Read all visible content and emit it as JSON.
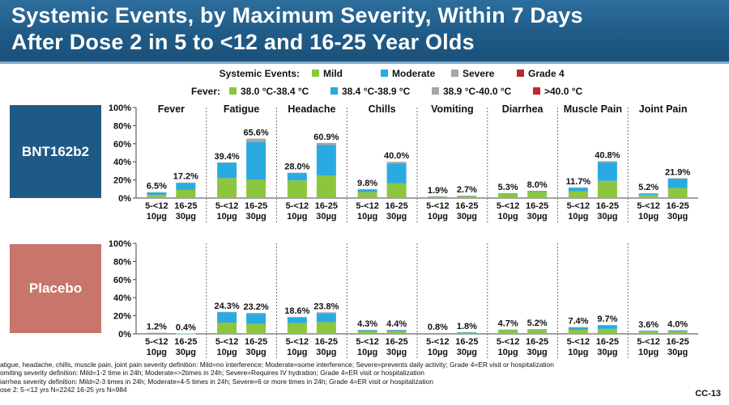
{
  "title": {
    "line1": "Systemic Events, by Maximum Severity, Within 7 Days",
    "line2": "After Dose 2 in 5 to <12 and 16-25 Year Olds"
  },
  "legend": {
    "systemic_label": "Systemic Events:",
    "systemic_items": [
      {
        "label": "Mild",
        "color": "#8cc63f"
      },
      {
        "label": "Moderate",
        "color": "#29abe2"
      },
      {
        "label": "Severe",
        "color": "#a6a6a6"
      },
      {
        "label": "Grade 4",
        "color": "#c1272d"
      }
    ],
    "fever_label": "Fever:",
    "fever_items": [
      {
        "label": "38.0 °C-38.4 °C",
        "color": "#8cc63f"
      },
      {
        "label": "38.4 °C-38.9 °C",
        "color": "#29abe2"
      },
      {
        "label": "38.9 °C-40.0 °C",
        "color": "#a6a6a6"
      },
      {
        "label": ">40.0 °C",
        "color": "#c1272d"
      }
    ]
  },
  "arms": {
    "bnt": "BNT162b2",
    "placebo": "Placebo"
  },
  "footnotes": [
    "atigue, headache, chills, muscle pain, joint pain severity definition: Mild=no interference; Moderate=some interference; Severe=prevents daily activity; Grade 4=ER visit or hospitalization",
    "omiting severity definition: Mild=1-2 time in 24h; Moderate=>2times in 24h; Severe=Requires IV hydration; Grade 4=ER visit or hospitalization",
    "iarrhea severity definition: Mild=2-3 times in 24h; Moderate=4-5 times in 24h; Severe=6 or more times in 24h; Grade 4=ER visit or hospitalization",
    "ose 2: 5-<12 yrs N=2242 16-25 yrs N=984"
  ],
  "slide_id": "CC-13",
  "colors": {
    "mild": "#8cc63f",
    "moderate": "#29abe2",
    "severe": "#a6a6a6",
    "grade4": "#c1272d"
  },
  "chart_data": {
    "type": "bar",
    "stacked": true,
    "categories": [
      "Fever",
      "Fatigue",
      "Headache",
      "Chills",
      "Vomiting",
      "Diarrhea",
      "Muscle Pain",
      "Joint Pain"
    ],
    "group_labels": [
      {
        "line1": "5-<12",
        "line2": "10µg"
      },
      {
        "line1": "16-25",
        "line2": "30µg"
      }
    ],
    "ylim": [
      0,
      100
    ],
    "yticks": [
      "0%",
      "20%",
      "40%",
      "60%",
      "80%",
      "100%"
    ],
    "series_names": [
      "Mild",
      "Moderate",
      "Severe",
      "Grade 4"
    ],
    "panels": [
      {
        "arm": "BNT162b2",
        "bars": [
          {
            "event": "Fever",
            "group": "5-<12 10µg",
            "total_label": "6.5%",
            "mild": 3.5,
            "moderate": 2.7,
            "severe": 0.3,
            "grade4": 0
          },
          {
            "event": "Fever",
            "group": "16-25 30µg",
            "total_label": "17.2%",
            "mild": 9.0,
            "moderate": 7.7,
            "severe": 0.5,
            "grade4": 0
          },
          {
            "event": "Fatigue",
            "group": "5-<12 10µg",
            "total_label": "39.4%",
            "mild": 22.0,
            "moderate": 17.0,
            "severe": 0.4,
            "grade4": 0
          },
          {
            "event": "Fatigue",
            "group": "16-25 30µg",
            "total_label": "65.6%",
            "mild": 20.5,
            "moderate": 41.5,
            "severe": 3.6,
            "grade4": 0
          },
          {
            "event": "Headache",
            "group": "5-<12 10µg",
            "total_label": "28.0%",
            "mild": 19.5,
            "moderate": 8.2,
            "severe": 0.3,
            "grade4": 0
          },
          {
            "event": "Headache",
            "group": "16-25 30µg",
            "total_label": "60.9%",
            "mild": 25.0,
            "moderate": 33.5,
            "severe": 2.4,
            "grade4": 0
          },
          {
            "event": "Chills",
            "group": "5-<12 10µg",
            "total_label": "9.8%",
            "mild": 6.5,
            "moderate": 3.1,
            "severe": 0.2,
            "grade4": 0
          },
          {
            "event": "Chills",
            "group": "16-25 30µg",
            "total_label": "40.0%",
            "mild": 16.5,
            "moderate": 21.5,
            "severe": 2.0,
            "grade4": 0
          },
          {
            "event": "Vomiting",
            "group": "5-<12 10µg",
            "total_label": "1.9%",
            "mild": 1.3,
            "moderate": 0.5,
            "severe": 0.1,
            "grade4": 0
          },
          {
            "event": "Vomiting",
            "group": "16-25 30µg",
            "total_label": "2.7%",
            "mild": 2.0,
            "moderate": 0.6,
            "severe": 0.1,
            "grade4": 0
          },
          {
            "event": "Diarrhea",
            "group": "5-<12 10µg",
            "total_label": "5.3%",
            "mild": 4.5,
            "moderate": 0.7,
            "severe": 0.1,
            "grade4": 0
          },
          {
            "event": "Diarrhea",
            "group": "16-25 30µg",
            "total_label": "8.0%",
            "mild": 6.8,
            "moderate": 1.1,
            "severe": 0.1,
            "grade4": 0
          },
          {
            "event": "Muscle Pain",
            "group": "5-<12 10µg",
            "total_label": "11.7%",
            "mild": 7.5,
            "moderate": 4.0,
            "severe": 0.2,
            "grade4": 0
          },
          {
            "event": "Muscle Pain",
            "group": "16-25 30µg",
            "total_label": "40.8%",
            "mild": 19.0,
            "moderate": 20.5,
            "severe": 1.3,
            "grade4": 0
          },
          {
            "event": "Joint Pain",
            "group": "5-<12 10µg",
            "total_label": "5.2%",
            "mild": 3.5,
            "moderate": 1.6,
            "severe": 0.1,
            "grade4": 0
          },
          {
            "event": "Joint Pain",
            "group": "16-25 30µg",
            "total_label": "21.9%",
            "mild": 11.0,
            "moderate": 10.4,
            "severe": 0.5,
            "grade4": 0
          }
        ]
      },
      {
        "arm": "Placebo",
        "bars": [
          {
            "event": "Fever",
            "group": "5-<12 10µg",
            "total_label": "1.2%",
            "mild": 0.7,
            "moderate": 0.4,
            "severe": 0.1,
            "grade4": 0
          },
          {
            "event": "Fever",
            "group": "16-25 30µg",
            "total_label": "0.4%",
            "mild": 0.2,
            "moderate": 0.1,
            "severe": 0.1,
            "grade4": 0
          },
          {
            "event": "Fatigue",
            "group": "5-<12 10µg",
            "total_label": "24.3%",
            "mild": 12.5,
            "moderate": 11.5,
            "severe": 0.3,
            "grade4": 0
          },
          {
            "event": "Fatigue",
            "group": "16-25 30µg",
            "total_label": "23.2%",
            "mild": 11.0,
            "moderate": 11.2,
            "severe": 1.0,
            "grade4": 0
          },
          {
            "event": "Headache",
            "group": "5-<12 10µg",
            "total_label": "18.6%",
            "mild": 12.0,
            "moderate": 6.4,
            "severe": 0.2,
            "grade4": 0
          },
          {
            "event": "Headache",
            "group": "16-25 30µg",
            "total_label": "23.8%",
            "mild": 13.0,
            "moderate": 10.0,
            "severe": 0.8,
            "grade4": 0
          },
          {
            "event": "Chills",
            "group": "5-<12 10µg",
            "total_label": "4.3%",
            "mild": 2.8,
            "moderate": 1.4,
            "severe": 0.1,
            "grade4": 0
          },
          {
            "event": "Chills",
            "group": "16-25 30µg",
            "total_label": "4.4%",
            "mild": 2.8,
            "moderate": 1.5,
            "severe": 0.1,
            "grade4": 0
          },
          {
            "event": "Vomiting",
            "group": "5-<12 10µg",
            "total_label": "0.8%",
            "mild": 0.6,
            "moderate": 0.2,
            "severe": 0,
            "grade4": 0
          },
          {
            "event": "Vomiting",
            "group": "16-25 30µg",
            "total_label": "1.8%",
            "mild": 1.4,
            "moderate": 0.4,
            "severe": 0,
            "grade4": 0
          },
          {
            "event": "Diarrhea",
            "group": "5-<12 10µg",
            "total_label": "4.7%",
            "mild": 4.0,
            "moderate": 0.6,
            "severe": 0.1,
            "grade4": 0
          },
          {
            "event": "Diarrhea",
            "group": "16-25 30µg",
            "total_label": "5.2%",
            "mild": 4.3,
            "moderate": 0.8,
            "severe": 0.1,
            "grade4": 0
          },
          {
            "event": "Muscle Pain",
            "group": "5-<12 10µg",
            "total_label": "7.4%",
            "mild": 4.5,
            "moderate": 2.8,
            "severe": 0.1,
            "grade4": 0
          },
          {
            "event": "Muscle Pain",
            "group": "16-25 30µg",
            "total_label": "9.7%",
            "mild": 5.5,
            "moderate": 4.0,
            "severe": 0.2,
            "grade4": 0
          },
          {
            "event": "Joint Pain",
            "group": "5-<12 10µg",
            "total_label": "3.6%",
            "mild": 2.5,
            "moderate": 1.0,
            "severe": 0.1,
            "grade4": 0
          },
          {
            "event": "Joint Pain",
            "group": "16-25 30µg",
            "total_label": "4.0%",
            "mild": 2.5,
            "moderate": 1.4,
            "severe": 0.1,
            "grade4": 0
          }
        ]
      }
    ]
  }
}
